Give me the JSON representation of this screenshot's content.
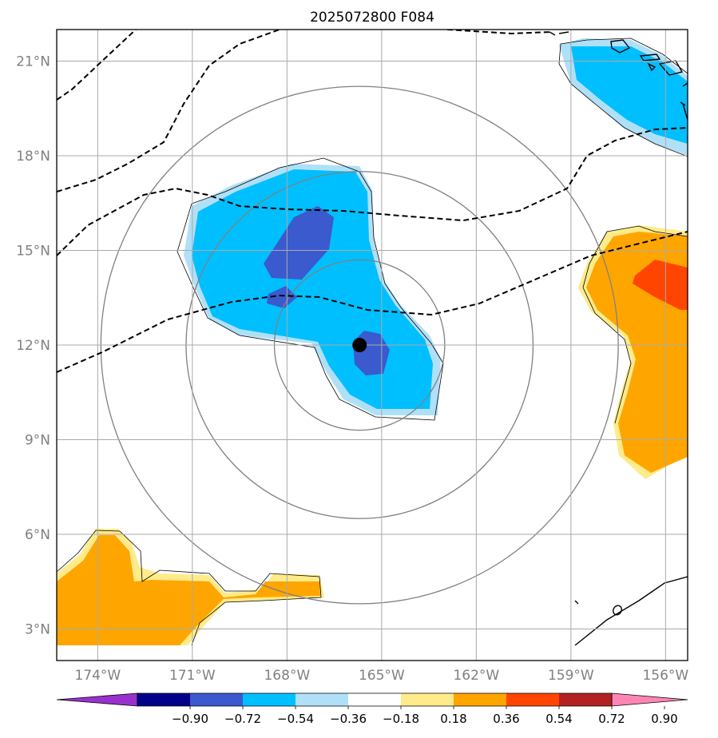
{
  "title": "2025072800 F084",
  "map": {
    "lon_range": [
      -175.3,
      -155.3
    ],
    "lat_range": [
      2.0,
      22.0
    ],
    "center": {
      "lon": -165.7,
      "lat": 12.0
    },
    "range_ring_radii_deg": [
      2.7,
      5.5,
      8.2
    ],
    "gridline_color": "#aaaaaa",
    "ring_color": "#808080",
    "lat_labels": [
      {
        "lat": 3,
        "label": "3°N"
      },
      {
        "lat": 6,
        "label": "6°N"
      },
      {
        "lat": 9,
        "label": "9°N"
      },
      {
        "lat": 12,
        "label": "12°N"
      },
      {
        "lat": 15,
        "label": "15°N"
      },
      {
        "lat": 18,
        "label": "18°N"
      },
      {
        "lat": 21,
        "label": "21°N"
      }
    ],
    "lon_labels": [
      {
        "lon": -174,
        "label": "174°W"
      },
      {
        "lon": -171,
        "label": "171°W"
      },
      {
        "lon": -168,
        "label": "168°W"
      },
      {
        "lon": -165,
        "label": "165°W"
      },
      {
        "lon": -162,
        "label": "162°W"
      },
      {
        "lon": -159,
        "label": "159°W"
      },
      {
        "lon": -156,
        "label": "156°W"
      }
    ]
  },
  "colorbar": {
    "colors": [
      "#9932cc",
      "#00008b",
      "#3a5acd",
      "#00bfff",
      "#b0e0f8",
      "#ffffff",
      "#ffeb8a",
      "#ffa500",
      "#ff4500",
      "#b22222",
      "#ff86b4"
    ],
    "tick_labels": [
      "−0.90",
      "−0.72",
      "−0.54",
      "−0.36",
      "−0.18",
      "0.18",
      "0.36",
      "0.54",
      "0.72",
      "0.90"
    ]
  }
}
